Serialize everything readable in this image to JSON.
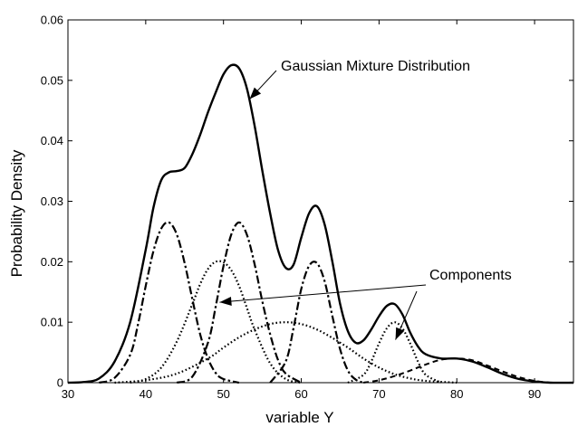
{
  "chart_data": {
    "type": "line",
    "title": "",
    "xlabel": "variable Y",
    "ylabel": "Probability Density",
    "xlim": [
      30,
      95
    ],
    "ylim": [
      0,
      0.06
    ],
    "x_ticks": [
      30,
      40,
      50,
      60,
      70,
      80,
      90
    ],
    "y_ticks": [
      0,
      0.01,
      0.02,
      0.03,
      0.04,
      0.05,
      0.06
    ],
    "x_tick_labels": [
      "30",
      "40",
      "50",
      "60",
      "70",
      "80",
      "90"
    ],
    "y_tick_labels": [
      "0",
      "0.01",
      "0.02",
      "0.03",
      "0.04",
      "0.05",
      "0.06"
    ],
    "grid": false,
    "legend": "none",
    "annotations": [
      {
        "text": "Gaussian Mixture Distribution",
        "points_to": {
          "x": 51.5,
          "y": 0.0478
        }
      },
      {
        "text": "Components",
        "points_to": [
          {
            "x": 49.5,
            "y": 0.0133
          },
          {
            "x": 72,
            "y": 0.0035
          }
        ]
      }
    ],
    "series": [
      {
        "style": "solid",
        "role": "mixture",
        "x": [
          30,
          32,
          34,
          36,
          38,
          40,
          41,
          42,
          43,
          44,
          45,
          46,
          47,
          48,
          49,
          50,
          51,
          52,
          53,
          54,
          55,
          56,
          57,
          58,
          59,
          60,
          61,
          62,
          63,
          64,
          65,
          66,
          67,
          68,
          69,
          70,
          71,
          72,
          73,
          74,
          75,
          76,
          78,
          80,
          82,
          84,
          86,
          88,
          90,
          92,
          95
        ],
        "y": [
          0.0,
          0.0001,
          0.0007,
          0.0035,
          0.01,
          0.022,
          0.029,
          0.0335,
          0.0348,
          0.035,
          0.0355,
          0.0378,
          0.041,
          0.0447,
          0.048,
          0.051,
          0.0525,
          0.052,
          0.0487,
          0.0425,
          0.035,
          0.028,
          0.022,
          0.019,
          0.0195,
          0.024,
          0.028,
          0.0292,
          0.0262,
          0.02,
          0.013,
          0.0085,
          0.0066,
          0.007,
          0.0088,
          0.011,
          0.0127,
          0.013,
          0.0113,
          0.0083,
          0.006,
          0.0047,
          0.004,
          0.004,
          0.0035,
          0.0025,
          0.0014,
          0.0006,
          0.0002,
          0.0,
          0.0
        ]
      },
      {
        "style": "dashdot",
        "role": "component",
        "x": [
          34,
          36,
          38,
          39,
          40,
          41,
          42,
          43,
          44,
          45,
          46,
          47,
          48,
          49,
          50,
          52
        ],
        "y": [
          0.0,
          0.0008,
          0.0046,
          0.0096,
          0.016,
          0.0218,
          0.0255,
          0.0265,
          0.0245,
          0.0198,
          0.0138,
          0.008,
          0.004,
          0.0016,
          0.0006,
          0.0
        ]
      },
      {
        "style": "dotted",
        "role": "component",
        "x": [
          38,
          40,
          42,
          44,
          46,
          47,
          48,
          49,
          50,
          51,
          52,
          53,
          54,
          56,
          58,
          60
        ],
        "y": [
          0.0,
          0.0006,
          0.0025,
          0.0068,
          0.013,
          0.0163,
          0.0188,
          0.02,
          0.0199,
          0.0186,
          0.016,
          0.0124,
          0.0088,
          0.0032,
          0.0006,
          0.0
        ]
      },
      {
        "style": "dashdot",
        "role": "component",
        "x": [
          44,
          46,
          48,
          49,
          50,
          51,
          52,
          53,
          54,
          55,
          56,
          57,
          58,
          60
        ],
        "y": [
          0.0,
          0.001,
          0.0066,
          0.0126,
          0.0193,
          0.0245,
          0.0265,
          0.0245,
          0.0196,
          0.0134,
          0.008,
          0.0038,
          0.0015,
          0.0
        ]
      },
      {
        "style": "dotted",
        "role": "component",
        "x": [
          36,
          40,
          44,
          48,
          50,
          52,
          54,
          56,
          58,
          60,
          62,
          64,
          66,
          68,
          70,
          72,
          74,
          76,
          80
        ],
        "y": [
          0.0,
          0.0004,
          0.0015,
          0.004,
          0.0058,
          0.0075,
          0.0088,
          0.0097,
          0.01,
          0.0097,
          0.0088,
          0.0074,
          0.0058,
          0.004,
          0.0025,
          0.0014,
          0.0007,
          0.0003,
          0.0
        ]
      },
      {
        "style": "dashdot",
        "role": "component",
        "x": [
          56,
          58,
          59,
          60,
          61,
          62,
          63,
          64,
          65,
          66,
          67,
          68
        ],
        "y": [
          0.0,
          0.0035,
          0.009,
          0.0155,
          0.0193,
          0.0198,
          0.0168,
          0.011,
          0.0055,
          0.002,
          0.0005,
          0.0
        ]
      },
      {
        "style": "dotted",
        "role": "component",
        "x": [
          66,
          68,
          69,
          70,
          71,
          72,
          73,
          74,
          75,
          76,
          78
        ],
        "y": [
          0.0,
          0.0013,
          0.0035,
          0.0065,
          0.009,
          0.01,
          0.009,
          0.0065,
          0.0035,
          0.0013,
          0.0
        ]
      },
      {
        "style": "dashed",
        "role": "component",
        "x": [
          68,
          70,
          72,
          74,
          76,
          78,
          80,
          82,
          84,
          86,
          88,
          90,
          92
        ],
        "y": [
          0.0,
          0.0004,
          0.0011,
          0.002,
          0.003,
          0.0038,
          0.004,
          0.0037,
          0.0028,
          0.0018,
          0.0009,
          0.0003,
          0.0
        ]
      }
    ]
  }
}
